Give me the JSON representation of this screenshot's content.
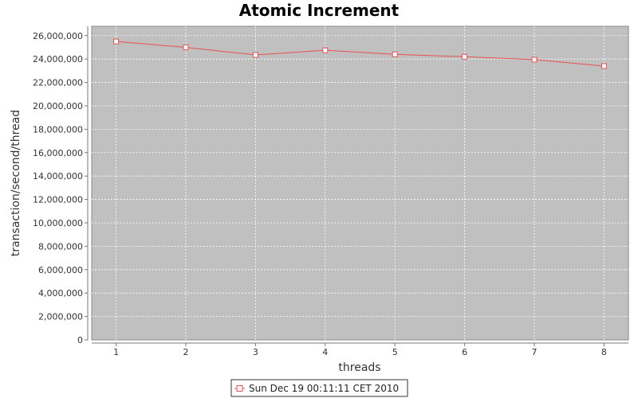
{
  "chart_data": {
    "type": "line",
    "title": "Atomic Increment",
    "xlabel": "threads",
    "ylabel": "transaction/second/thread",
    "x": [
      1,
      2,
      3,
      4,
      5,
      6,
      7,
      8
    ],
    "xlim": [
      0.65,
      8.35
    ],
    "ylim": [
      0,
      26800000
    ],
    "yticks": [
      0,
      2000000,
      4000000,
      6000000,
      8000000,
      10000000,
      12000000,
      14000000,
      16000000,
      18000000,
      20000000,
      22000000,
      24000000,
      26000000
    ],
    "grid": true,
    "legend_position": "bottom-center",
    "background_color": "#c0c0c0",
    "series": [
      {
        "name": "Sun Dec 19 00:11:11 CET 2010",
        "color": "#e85050",
        "values": [
          25500000,
          25000000,
          24350000,
          24750000,
          24400000,
          24200000,
          23950000,
          23400000
        ]
      }
    ]
  }
}
